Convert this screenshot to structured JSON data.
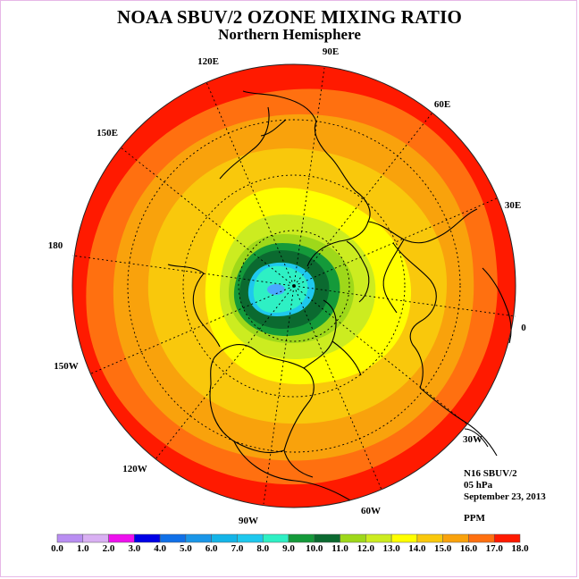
{
  "header": {
    "title": "NOAA SBUV/2 OZONE MIXING RATIO",
    "subtitle": "Northern Hemisphere"
  },
  "map": {
    "projection": "north-polar-stereographic",
    "longitude_labels": [
      "90E",
      "60E",
      "30E",
      "0",
      "30W",
      "60W",
      "90W",
      "120W",
      "150W",
      "180",
      "150E",
      "120E"
    ],
    "field_levels_ppm": [
      17,
      16,
      15,
      14,
      13,
      12,
      11,
      10,
      9,
      8,
      7.5
    ]
  },
  "info": {
    "instrument": "N16 SBUV/2",
    "pressure_level": "05 hPa",
    "date": "September 23, 2013",
    "units": "PPM"
  },
  "colorbar": {
    "ticks": [
      "0.0",
      "1.0",
      "2.0",
      "3.0",
      "4.0",
      "5.0",
      "6.0",
      "7.0",
      "8.0",
      "9.0",
      "10.0",
      "11.0",
      "12.0",
      "13.0",
      "14.0",
      "15.0",
      "16.0",
      "17.0",
      "18.0"
    ],
    "colors": [
      "#b98ef2",
      "#d9b0f3",
      "#ee10ee",
      "#0000e6",
      "#1070e8",
      "#1a96e8",
      "#14b4e8",
      "#1ec8ee",
      "#2ef0c4",
      "#149a3a",
      "#0b6a30",
      "#9ed81a",
      "#ccec20",
      "#ffff00",
      "#f9c80c",
      "#f9a20c",
      "#ff7010",
      "#ff1a00",
      "#7a5030"
    ]
  }
}
